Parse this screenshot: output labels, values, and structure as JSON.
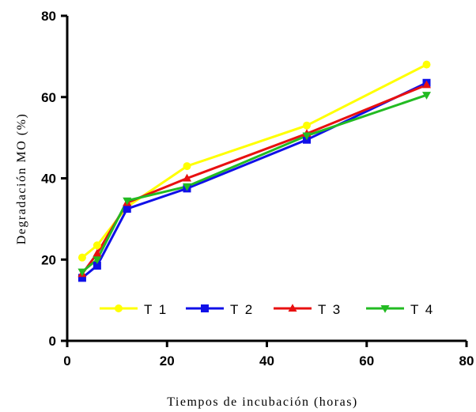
{
  "chart_data": {
    "type": "line",
    "xlabel": "Tiempos de incubación (horas)",
    "ylabel": "Degradación MO (%)",
    "xlim": [
      0,
      80
    ],
    "ylim": [
      0,
      80
    ],
    "x_ticks": [
      "0",
      "20",
      "40",
      "60",
      "80"
    ],
    "y_ticks": [
      "0",
      "20",
      "40",
      "60",
      "80"
    ],
    "grid": false,
    "legend_position": "bottom-inside",
    "x": [
      3,
      6,
      12,
      24,
      48,
      72
    ],
    "series": [
      {
        "name": "T 1",
        "color": "#ffff00",
        "marker": "circle",
        "values": [
          20.5,
          23.5,
          33.0,
          43.0,
          53.0,
          68.0
        ]
      },
      {
        "name": "T 2",
        "color": "#1010e8",
        "marker": "square",
        "values": [
          15.5,
          18.5,
          32.5,
          37.5,
          49.5,
          63.5
        ]
      },
      {
        "name": "T 3",
        "color": "#e81010",
        "marker": "triangle-up",
        "values": [
          16.5,
          21.5,
          34.0,
          40.0,
          51.0,
          63.0
        ]
      },
      {
        "name": "T 4",
        "color": "#22bb22",
        "marker": "triangle-down",
        "values": [
          17.0,
          20.0,
          34.5,
          38.0,
          50.5,
          60.5
        ]
      }
    ]
  }
}
